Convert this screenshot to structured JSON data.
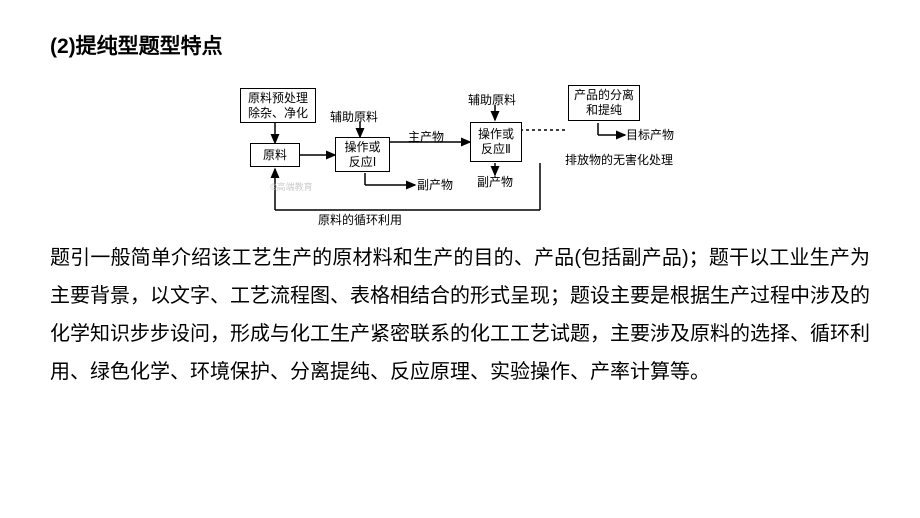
{
  "heading": "(2)提纯型题型特点",
  "diagram": {
    "boxes": {
      "pretreat": "原料预处理\n除杂、净化",
      "raw": "原料",
      "op1": "操作或\n反应Ⅰ",
      "op2": "操作或\n反应Ⅱ",
      "sep": "产品的分离\n和提纯"
    },
    "labels": {
      "aux_raw": "辅助原料",
      "aux_raw2": "辅助原料",
      "main_prod": "主产物",
      "by_prod": "副产物",
      "by_prod2": "副产物",
      "target": "目标产物",
      "harmless": "排放物的无害化处理",
      "recycle": "原料的循环利用"
    },
    "watermark": "©高端教育",
    "style": {
      "stroke": "#000000",
      "stroke_width": 1.5,
      "font_size": 12,
      "bg": "#ffffff",
      "text_color": "#000000"
    }
  },
  "maintext": "题引一般简单介绍该工艺生产的原材料和生产的目的、产品(包括副产品)；题干以工业生产为主要背景，以文字、工艺流程图、表格相结合的形式呈现；题设主要是根据生产过程中涉及的化学知识步步设问，形成与化工生产紧密联系的化工工艺试题，主要涉及原料的选择、循环利用、绿色化学、环境保护、分离提纯、反应原理、实验操作、产率计算等。"
}
